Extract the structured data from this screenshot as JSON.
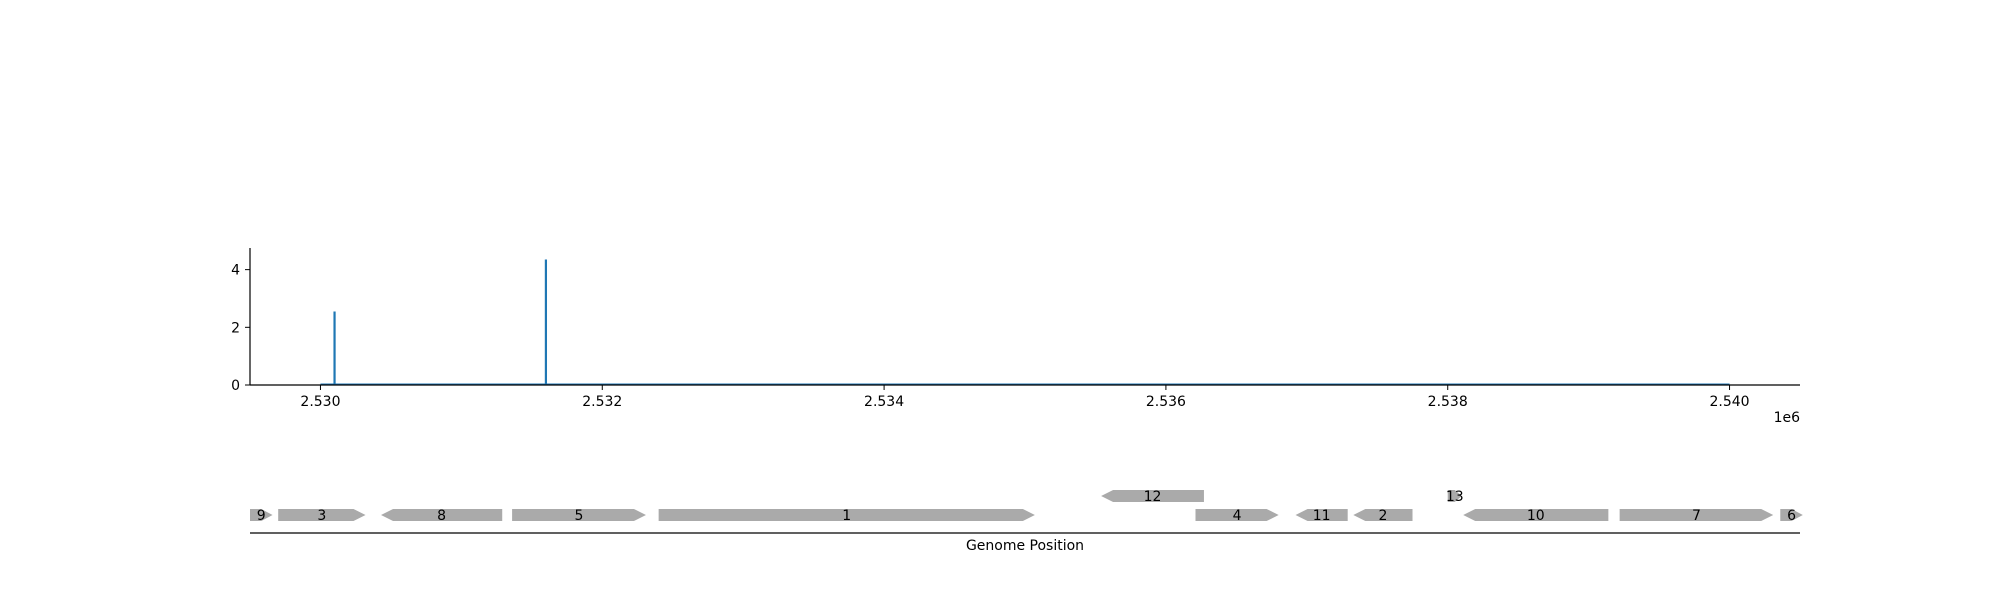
{
  "chart_data": [
    {
      "type": "line",
      "title": "",
      "xlabel": "",
      "ylabel": "",
      "x_offset_label": "1e6",
      "xlim": [
        2.5295,
        2.5405
      ],
      "ylim": [
        0,
        4.75
      ],
      "x_ticks": [
        2.53,
        2.532,
        2.534,
        2.536,
        2.538,
        2.54
      ],
      "x_tick_labels": [
        "2.530",
        "2.532",
        "2.534",
        "2.536",
        "2.538",
        "2.540"
      ],
      "y_ticks": [
        0,
        2,
        4
      ],
      "y_tick_labels": [
        "0",
        "2",
        "4"
      ],
      "line_color": "#1f77b4",
      "baseline": [
        2.53,
        2.54
      ],
      "peaks": [
        {
          "x": 2.5301,
          "y": 2.55
        },
        {
          "x": 2.5316,
          "y": 4.35
        }
      ],
      "grid": false
    },
    {
      "type": "gene-track",
      "xlabel": "Genome Position",
      "feature_color": "#aaaaaa",
      "genes": [
        {
          "label": "9",
          "start": 2.5295,
          "end": 2.52966,
          "strand": "+",
          "row": 0
        },
        {
          "label": "3",
          "start": 2.5297,
          "end": 2.53032,
          "strand": "+",
          "row": 0
        },
        {
          "label": "8",
          "start": 2.53043,
          "end": 2.53129,
          "strand": "-",
          "row": 0
        },
        {
          "label": "5",
          "start": 2.53136,
          "end": 2.53231,
          "strand": "+",
          "row": 0
        },
        {
          "label": "1",
          "start": 2.5324,
          "end": 2.53507,
          "strand": "+",
          "row": 0
        },
        {
          "label": "12",
          "start": 2.53554,
          "end": 2.53627,
          "strand": "-",
          "row": 1
        },
        {
          "label": "4",
          "start": 2.53621,
          "end": 2.5368,
          "strand": "+",
          "row": 0
        },
        {
          "label": "11",
          "start": 2.53692,
          "end": 2.53729,
          "strand": "-",
          "row": 0
        },
        {
          "label": "2",
          "start": 2.53733,
          "end": 2.53775,
          "strand": "-",
          "row": 0
        },
        {
          "label": "13",
          "start": 2.538,
          "end": 2.5381,
          "strand": "+",
          "row": 1
        },
        {
          "label": "10",
          "start": 2.53811,
          "end": 2.53914,
          "strand": "-",
          "row": 0
        },
        {
          "label": "7",
          "start": 2.53922,
          "end": 2.54031,
          "strand": "+",
          "row": 0
        },
        {
          "label": "6",
          "start": 2.54036,
          "end": 2.54052,
          "strand": "+",
          "row": 0
        }
      ]
    }
  ]
}
